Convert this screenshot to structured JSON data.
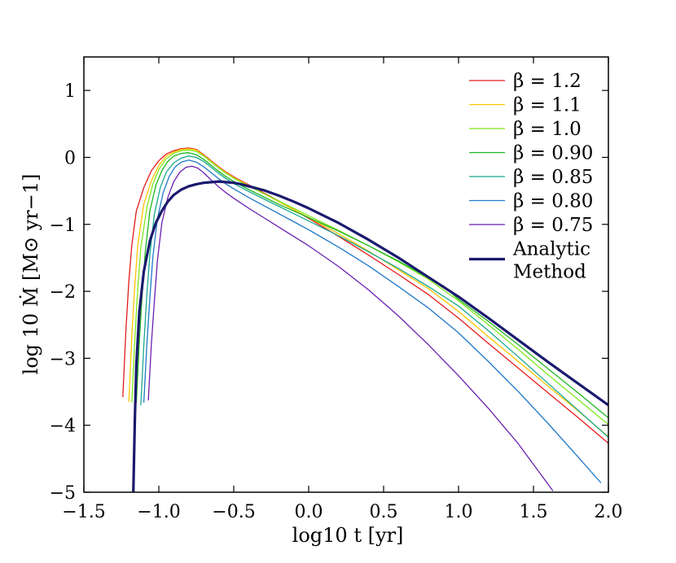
{
  "chart_data": {
    "type": "line",
    "title": "",
    "xlabel": "log10 t [yr]",
    "ylabel": "log 10 Ṁ [M⊙ yr−1]",
    "xlim": [
      -1.5,
      2.0
    ],
    "ylim": [
      -5,
      1.5
    ],
    "xticks": [
      -1.5,
      -1.0,
      -0.5,
      0.0,
      0.5,
      1.0,
      1.5,
      2.0
    ],
    "xtick_labels": [
      "−1.5",
      "−1.0",
      "−0.5",
      "0.0",
      "0.5",
      "1.0",
      "1.5",
      "2.0"
    ],
    "yticks": [
      1,
      0,
      -1,
      -2,
      -3,
      -4,
      -5
    ],
    "ytick_labels": [
      "1",
      "0",
      "−1",
      "−2",
      "−3",
      "−4",
      "−5"
    ],
    "legend_position": "top-right",
    "series": [
      {
        "name": "β = 1.2",
        "color": "#e41a1c",
        "width": 1.3,
        "x": [
          -1.24,
          -1.22,
          -1.2,
          -1.18,
          -1.15,
          -1.1,
          -1.05,
          -1.0,
          -0.95,
          -0.9,
          -0.85,
          -0.8,
          -0.75,
          -0.7,
          -0.65,
          -0.6,
          -0.55,
          -0.5,
          -0.4,
          -0.3,
          -0.2,
          -0.1,
          0.0,
          0.2,
          0.4,
          0.6,
          0.8,
          1.0,
          1.2,
          1.4,
          1.6,
          1.8,
          2.0
        ],
        "y": [
          -3.58,
          -2.6,
          -1.85,
          -1.3,
          -0.8,
          -0.45,
          -0.2,
          -0.05,
          0.05,
          0.1,
          0.13,
          0.14,
          0.12,
          0.04,
          -0.05,
          -0.14,
          -0.22,
          -0.29,
          -0.41,
          -0.53,
          -0.65,
          -0.78,
          -0.91,
          -1.18,
          -1.46,
          -1.75,
          -2.05,
          -2.4,
          -2.78,
          -3.15,
          -3.52,
          -3.89,
          -4.27
        ]
      },
      {
        "name": "β = 1.1",
        "color": "#ffc400",
        "width": 1.3,
        "x": [
          -1.2,
          -1.18,
          -1.16,
          -1.14,
          -1.1,
          -1.05,
          -1.0,
          -0.95,
          -0.9,
          -0.85,
          -0.8,
          -0.75,
          -0.7,
          -0.65,
          -0.6,
          -0.55,
          -0.5,
          -0.4,
          -0.3,
          -0.2,
          -0.1,
          0.0,
          0.2,
          0.4,
          0.6,
          0.8,
          1.0,
          1.2,
          1.4,
          1.6,
          1.8,
          2.0
        ],
        "y": [
          -3.65,
          -2.65,
          -1.9,
          -1.3,
          -0.7,
          -0.35,
          -0.12,
          0.02,
          0.08,
          0.12,
          0.13,
          0.11,
          0.03,
          -0.06,
          -0.15,
          -0.23,
          -0.3,
          -0.42,
          -0.54,
          -0.66,
          -0.78,
          -0.9,
          -1.14,
          -1.4,
          -1.68,
          -1.96,
          -2.3,
          -2.68,
          -3.05,
          -3.42,
          -3.79,
          -4.17
        ]
      },
      {
        "name": "β = 1.0",
        "color": "#7fe81c",
        "width": 1.3,
        "x": [
          -1.18,
          -1.16,
          -1.14,
          -1.12,
          -1.08,
          -1.04,
          -1.0,
          -0.95,
          -0.9,
          -0.85,
          -0.8,
          -0.75,
          -0.7,
          -0.65,
          -0.6,
          -0.55,
          -0.5,
          -0.4,
          -0.3,
          -0.2,
          -0.1,
          0.0,
          0.2,
          0.4,
          0.6,
          0.8,
          1.0,
          1.2,
          1.4,
          1.6,
          1.8,
          2.0
        ],
        "y": [
          -3.66,
          -2.7,
          -1.95,
          -1.35,
          -0.75,
          -0.4,
          -0.18,
          -0.02,
          0.06,
          0.1,
          0.11,
          0.09,
          0.02,
          -0.07,
          -0.16,
          -0.24,
          -0.31,
          -0.43,
          -0.54,
          -0.65,
          -0.76,
          -0.87,
          -1.09,
          -1.32,
          -1.56,
          -1.82,
          -2.14,
          -2.5,
          -2.87,
          -3.25,
          -3.62,
          -3.99
        ]
      },
      {
        "name": "β = 0.90",
        "color": "#1fb51f",
        "width": 1.3,
        "x": [
          -1.15,
          -1.13,
          -1.11,
          -1.09,
          -1.06,
          -1.02,
          -0.98,
          -0.94,
          -0.9,
          -0.85,
          -0.8,
          -0.75,
          -0.7,
          -0.65,
          -0.6,
          -0.55,
          -0.5,
          -0.4,
          -0.3,
          -0.2,
          -0.1,
          0.0,
          0.2,
          0.4,
          0.6,
          0.8,
          0.9,
          1.0,
          1.2,
          1.4,
          1.6,
          1.8,
          2.0
        ],
        "y": [
          -3.66,
          -2.75,
          -2.0,
          -1.4,
          -0.8,
          -0.42,
          -0.2,
          -0.06,
          0.02,
          0.06,
          0.07,
          0.04,
          -0.03,
          -0.12,
          -0.21,
          -0.29,
          -0.36,
          -0.48,
          -0.59,
          -0.7,
          -0.8,
          -0.9,
          -1.1,
          -1.32,
          -1.55,
          -1.8,
          -1.92,
          -2.12,
          -2.45,
          -2.8,
          -3.16,
          -3.52,
          -3.89
        ]
      },
      {
        "name": "β = 0.85",
        "color": "#1aa88f",
        "width": 1.3,
        "x": [
          -1.12,
          -1.1,
          -1.08,
          -1.06,
          -1.03,
          -0.99,
          -0.95,
          -0.9,
          -0.85,
          -0.8,
          -0.75,
          -0.7,
          -0.65,
          -0.6,
          -0.55,
          -0.5,
          -0.4,
          -0.3,
          -0.2,
          -0.1,
          0.0,
          0.2,
          0.4,
          0.6,
          0.8,
          1.0,
          1.2,
          1.4,
          1.6,
          1.8,
          2.0
        ],
        "y": [
          -3.7,
          -2.8,
          -2.05,
          -1.45,
          -0.85,
          -0.45,
          -0.22,
          -0.08,
          -0.01,
          0.02,
          0.0,
          -0.06,
          -0.15,
          -0.24,
          -0.32,
          -0.39,
          -0.51,
          -0.62,
          -0.73,
          -0.84,
          -0.95,
          -1.17,
          -1.41,
          -1.66,
          -1.93,
          -2.22,
          -2.59,
          -2.98,
          -3.38,
          -3.78,
          -4.18
        ]
      },
      {
        "name": "β = 0.80",
        "color": "#1f78c8",
        "width": 1.3,
        "x": [
          -1.1,
          -1.08,
          -1.06,
          -1.04,
          -1.01,
          -0.97,
          -0.93,
          -0.89,
          -0.85,
          -0.8,
          -0.75,
          -0.7,
          -0.65,
          -0.6,
          -0.55,
          -0.5,
          -0.4,
          -0.3,
          -0.2,
          -0.1,
          0.0,
          0.2,
          0.4,
          0.6,
          0.8,
          1.0,
          1.2,
          1.4,
          1.6,
          1.8,
          1.95
        ],
        "y": [
          -3.66,
          -2.8,
          -2.1,
          -1.5,
          -0.92,
          -0.52,
          -0.28,
          -0.14,
          -0.07,
          -0.04,
          -0.07,
          -0.14,
          -0.23,
          -0.32,
          -0.4,
          -0.47,
          -0.6,
          -0.72,
          -0.84,
          -0.96,
          -1.08,
          -1.34,
          -1.62,
          -1.93,
          -2.25,
          -2.62,
          -3.05,
          -3.5,
          -3.98,
          -4.48,
          -4.86
        ]
      },
      {
        "name": "β = 0.75",
        "color": "#6a1fb0",
        "width": 1.3,
        "x": [
          -1.07,
          -1.05,
          -1.03,
          -1.01,
          -0.98,
          -0.94,
          -0.9,
          -0.86,
          -0.82,
          -0.78,
          -0.74,
          -0.7,
          -0.65,
          -0.6,
          -0.55,
          -0.5,
          -0.4,
          -0.3,
          -0.2,
          -0.1,
          0.0,
          0.2,
          0.4,
          0.6,
          0.8,
          1.0,
          1.2,
          1.4,
          1.63
        ],
        "y": [
          -3.63,
          -2.8,
          -2.15,
          -1.55,
          -0.98,
          -0.6,
          -0.36,
          -0.22,
          -0.15,
          -0.13,
          -0.16,
          -0.23,
          -0.34,
          -0.44,
          -0.53,
          -0.61,
          -0.76,
          -0.9,
          -1.04,
          -1.18,
          -1.32,
          -1.63,
          -1.98,
          -2.37,
          -2.8,
          -3.26,
          -3.75,
          -4.28,
          -4.98
        ]
      },
      {
        "name": "Analytic Method",
        "color": "#1a1a6e",
        "width": 3.2,
        "x": [
          -1.17,
          -1.16,
          -1.15,
          -1.13,
          -1.1,
          -1.06,
          -1.02,
          -0.98,
          -0.94,
          -0.9,
          -0.85,
          -0.8,
          -0.75,
          -0.7,
          -0.65,
          -0.6,
          -0.55,
          -0.5,
          -0.45,
          -0.4,
          -0.3,
          -0.2,
          -0.1,
          0.0,
          0.1,
          0.2,
          0.4,
          0.6,
          0.8,
          1.0,
          1.2,
          1.4,
          1.6,
          1.8,
          2.0
        ],
        "y": [
          -5.0,
          -3.9,
          -3.1,
          -2.3,
          -1.7,
          -1.25,
          -0.98,
          -0.8,
          -0.66,
          -0.56,
          -0.48,
          -0.43,
          -0.4,
          -0.38,
          -0.37,
          -0.36,
          -0.37,
          -0.38,
          -0.4,
          -0.43,
          -0.49,
          -0.57,
          -0.66,
          -0.76,
          -0.87,
          -0.98,
          -1.23,
          -1.5,
          -1.79,
          -2.08,
          -2.4,
          -2.73,
          -3.06,
          -3.38,
          -3.7
        ]
      }
    ]
  }
}
